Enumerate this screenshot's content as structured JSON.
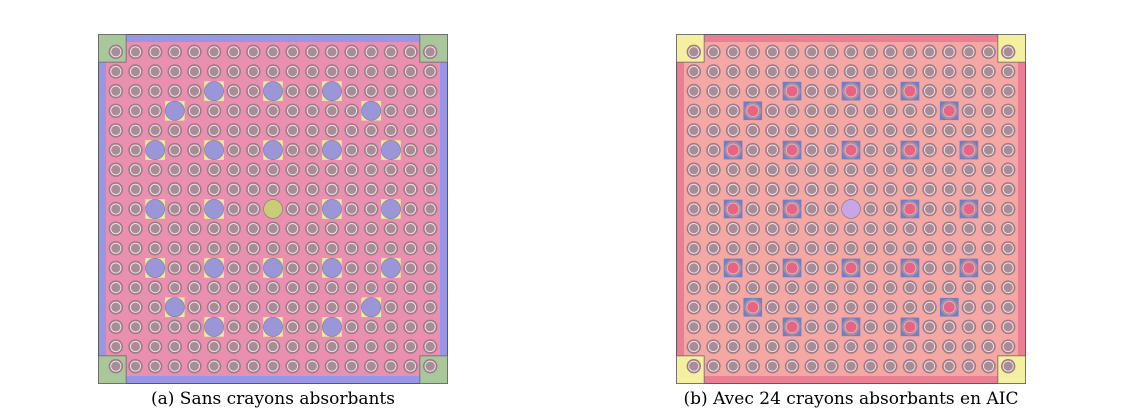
{
  "figure": {
    "panels": [
      {
        "id": "a",
        "caption": "(a) Sans crayons absorbants",
        "grid_size": 17,
        "colors": {
          "border": "#9a96e6",
          "moderator": "#ea8fb0",
          "fuel_outer": "#9b7b86",
          "fuel_ring": "#f2e0e6",
          "fuel_core": "#a98d96",
          "guide_tube": "#9a96d8",
          "guide_square": "#ecec9a",
          "instrument_tube": "#c9cd76",
          "corner_square": "#a8c79a"
        },
        "guide_tube_positions": [
          [
            2,
            5
          ],
          [
            2,
            8
          ],
          [
            2,
            11
          ],
          [
            3,
            3
          ],
          [
            3,
            13
          ],
          [
            5,
            2
          ],
          [
            5,
            5
          ],
          [
            5,
            8
          ],
          [
            5,
            11
          ],
          [
            5,
            14
          ],
          [
            8,
            2
          ],
          [
            8,
            5
          ],
          [
            8,
            11
          ],
          [
            8,
            14
          ],
          [
            11,
            2
          ],
          [
            11,
            5
          ],
          [
            11,
            8
          ],
          [
            11,
            11
          ],
          [
            11,
            14
          ],
          [
            13,
            3
          ],
          [
            13,
            13
          ],
          [
            14,
            5
          ],
          [
            14,
            8
          ],
          [
            14,
            11
          ]
        ],
        "instrument_tube_position": [
          8,
          8
        ]
      },
      {
        "id": "b",
        "caption": "(b) Avec 24 crayons absorbants en AIC",
        "grid_size": 17,
        "colors": {
          "border": "#ea7f93",
          "moderator": "#f5a7a3",
          "fuel_outer": "#9b7b86",
          "fuel_ring": "#f2e0e6",
          "fuel_core": "#a98d96",
          "absorber_square": "#6e7fc8",
          "absorber_outer": "#a98ea0",
          "absorber_core": "#e86482",
          "instrument_tube": "#c7a6e8",
          "corner_square": "#f4f0a0"
        },
        "absorber_positions": [
          [
            2,
            5
          ],
          [
            2,
            8
          ],
          [
            2,
            11
          ],
          [
            3,
            3
          ],
          [
            3,
            13
          ],
          [
            5,
            2
          ],
          [
            5,
            5
          ],
          [
            5,
            8
          ],
          [
            5,
            11
          ],
          [
            5,
            14
          ],
          [
            8,
            2
          ],
          [
            8,
            5
          ],
          [
            8,
            11
          ],
          [
            8,
            14
          ],
          [
            11,
            2
          ],
          [
            11,
            5
          ],
          [
            11,
            8
          ],
          [
            11,
            11
          ],
          [
            11,
            14
          ],
          [
            13,
            3
          ],
          [
            13,
            13
          ],
          [
            14,
            5
          ],
          [
            14,
            8
          ],
          [
            14,
            11
          ]
        ],
        "instrument_tube_position": [
          8,
          8
        ]
      }
    ]
  }
}
